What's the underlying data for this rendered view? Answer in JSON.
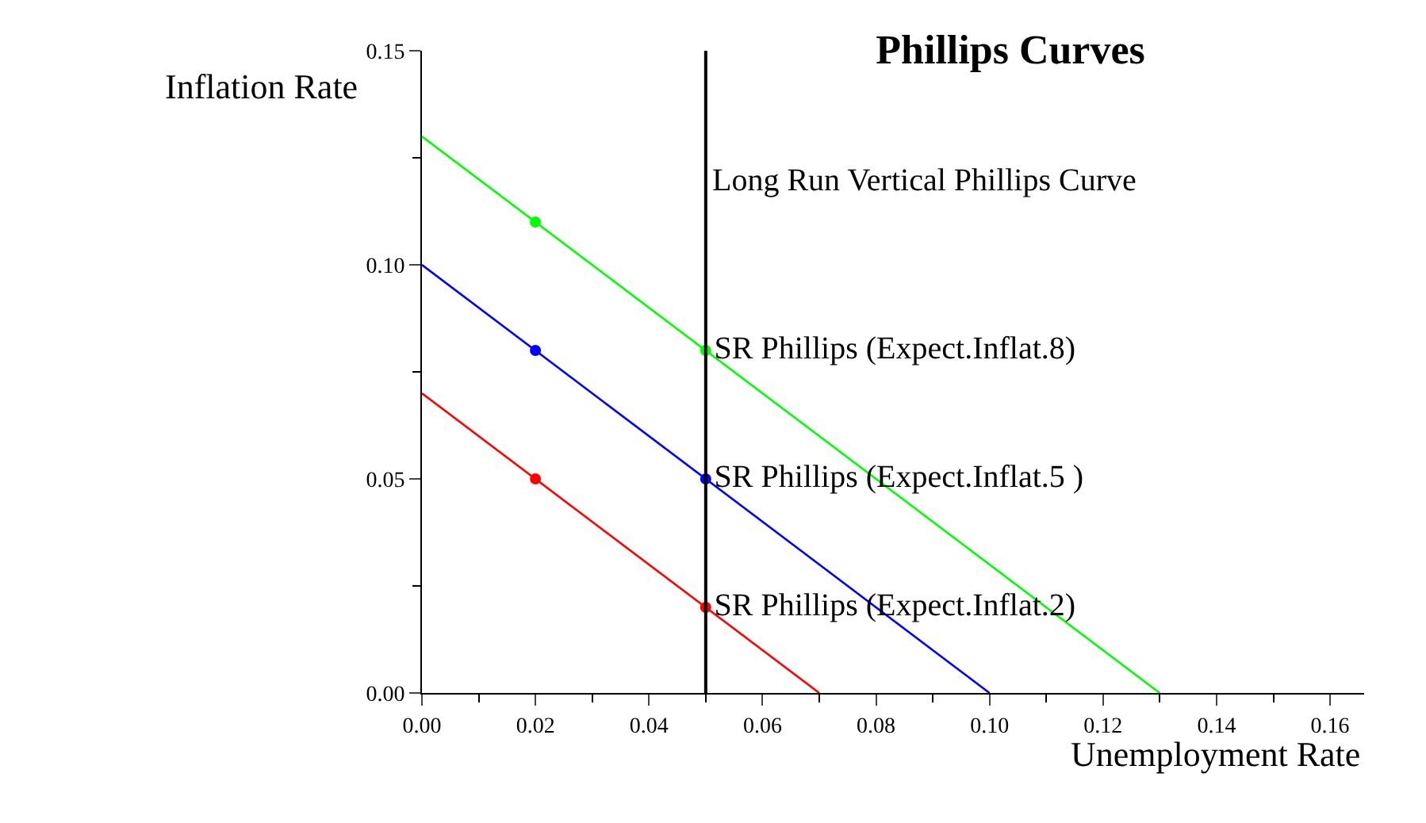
{
  "chart_data": {
    "type": "line",
    "title": "Phillips Curves",
    "xlabel": "Unemployment Rate",
    "ylabel": "Inflation Rate",
    "xlim": [
      0,
      0.166
    ],
    "ylim": [
      0,
      0.15
    ],
    "xticks": [
      {
        "value": 0,
        "label": "0.00"
      },
      {
        "value": 0.01,
        "label": null
      },
      0.02,
      {
        "value": 0.03,
        "label": null
      },
      0.04,
      {
        "value": 0.05,
        "label": null
      },
      0.06,
      {
        "value": 0.07,
        "label": null
      },
      0.08,
      {
        "value": 0.09,
        "label": null
      },
      {
        "value": 0.1,
        "label": "0.10"
      },
      {
        "value": 0.11,
        "label": null
      },
      0.12,
      {
        "value": 0.13,
        "label": null
      },
      0.14,
      {
        "value": 0.15,
        "label": null
      },
      0.16
    ],
    "yticks": [
      {
        "value": 0,
        "label": "0.00"
      },
      {
        "value": 0.025,
        "label": null
      },
      0.05,
      {
        "value": 0.075,
        "label": null
      },
      {
        "value": 0.1,
        "label": "0.10"
      },
      {
        "value": 0.125,
        "label": null
      },
      0.15
    ],
    "marker": "none",
    "line_style": "solid",
    "series": [
      {
        "color": "#00ff00",
        "x": [
          0,
          0.13
        ],
        "values": [
          0.13,
          0
        ]
      },
      {
        "color": "#0000ff",
        "x": [
          0,
          0.1
        ],
        "values": [
          0.1,
          0
        ]
      },
      {
        "color": "#ff0000",
        "x": [
          0,
          0.07
        ],
        "values": [
          0.07,
          0
        ]
      },
      {
        "type": "scatter",
        "name": "SR Phillips (Expect.Inflat.8)",
        "marker": "circle",
        "color": "#00ff00",
        "x": [
          0.02,
          0.05
        ],
        "values": [
          0.11,
          0.08
        ]
      },
      {
        "type": "scatter",
        "name": "SR Phillips (Expect.Inflat.5 )",
        "marker": "circle",
        "color": "#0000ff",
        "x": [
          0.02,
          0.05
        ],
        "values": [
          0.08,
          0.05
        ]
      },
      {
        "type": "scatter",
        "name": "SR Phillips (Expect.Inflat.2)",
        "marker": "circle",
        "color": "#ff0000",
        "x": [
          0.02,
          0.05
        ],
        "values": [
          0.05,
          0.02
        ]
      }
    ],
    "ref_lines": [
      {
        "axis": "x",
        "value": 0.05,
        "label": "Long Run Vertical Phillips Curve",
        "color": "#000000"
      }
    ]
  }
}
